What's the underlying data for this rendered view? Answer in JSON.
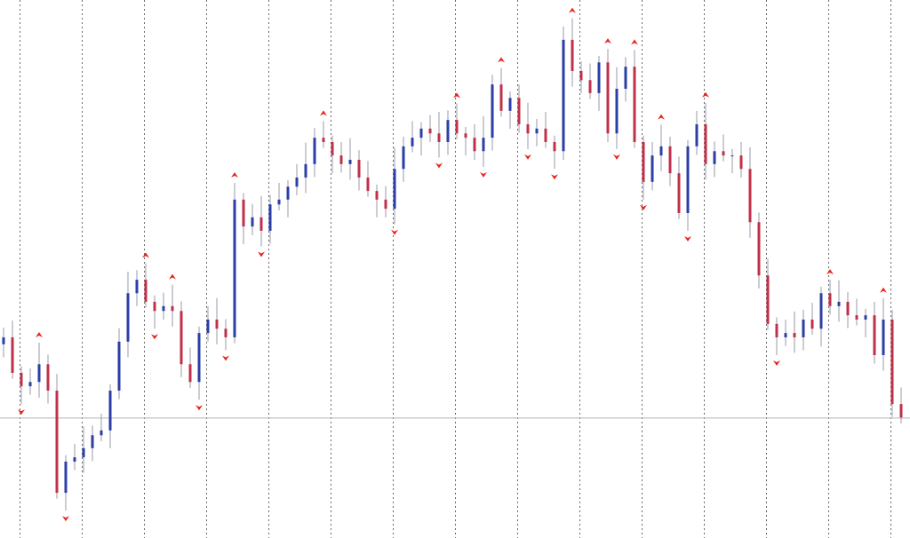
{
  "chart_data": {
    "type": "candlestick",
    "colors": {
      "up": "#2b3fa6",
      "down": "#c0304a",
      "wick": "#9a9aa8",
      "fractal": "#e8231e",
      "price_line": "#b4b4b4",
      "separator": "#505050"
    },
    "ylim": [
      0,
      100
    ],
    "price_line": 22.3,
    "open": [
      36.0,
      37.3,
      30.7,
      28.2,
      29.0,
      32.3,
      27.4,
      8.4,
      14.2,
      15.0,
      16.7,
      19.1,
      20.0,
      27.4,
      36.5,
      45.5,
      48.0,
      43.9,
      42.2,
      43.1,
      42.2,
      32.3,
      29.0,
      38.1,
      40.6,
      38.9,
      37.3,
      62.9,
      57.9,
      59.6,
      57.1,
      62.0,
      62.9,
      65.3,
      67.0,
      69.5,
      74.4,
      73.6,
      71.1,
      69.5,
      70.3,
      67.0,
      64.5,
      62.9,
      61.2,
      68.6,
      72.8,
      74.4,
      76.1,
      75.2,
      73.6,
      77.7,
      75.2,
      74.4,
      71.9,
      74.4,
      84.3,
      79.4,
      81.8,
      76.9,
      75.2,
      76.1,
      73.6,
      71.9,
      92.6,
      86.8,
      85.1,
      82.7,
      88.4,
      75.2,
      83.5,
      87.6,
      73.6,
      66.2,
      71.1,
      72.8,
      67.8,
      60.4,
      72.8,
      76.9,
      69.5,
      71.9,
      71.1,
      71.1,
      68.6,
      58.7,
      48.8,
      39.8,
      37.3,
      38.1,
      37.3,
      40.6,
      38.9,
      45.5,
      43.1,
      43.9,
      41.4,
      40.6,
      41.4,
      34.0,
      40.6,
      24.9
    ],
    "high": [
      39.1,
      40.4,
      31.9,
      31.5,
      36.3,
      34.1,
      30.5,
      15.4,
      17.5,
      20.7,
      20.9,
      23.1,
      28.6,
      39.0,
      49.5,
      49.8,
      51.1,
      45.1,
      45.6,
      47.1,
      44.0,
      35.4,
      39.3,
      43.1,
      44.6,
      40.7,
      66.0,
      64.1,
      62.1,
      63.6,
      63.8,
      66.0,
      66.5,
      69.5,
      73.5,
      76.2,
      77.5,
      74.8,
      73.6,
      74.3,
      72.1,
      70.1,
      65.7,
      65.4,
      72.6,
      74.6,
      77.5,
      77.3,
      78.6,
      79.2,
      79.5,
      80.8,
      76.4,
      76.9,
      78.4,
      86.1,
      87.4,
      83.0,
      84.3,
      80.9,
      77.9,
      79.2,
      74.8,
      95.1,
      96.6,
      88.6,
      88.2,
      89.6,
      90.9,
      87.5,
      89.4,
      90.7,
      74.8,
      73.6,
      76.8,
      74.6,
      70.9,
      74.0,
      79.4,
      80.9,
      73.7,
      75.0,
      72.3,
      73.6,
      72.6,
      60.5,
      51.9,
      41.0,
      40.6,
      42.1,
      42.4,
      43.7,
      46.7,
      48.0,
      47.9,
      45.7,
      44.5,
      42.6,
      43.9,
      44.6,
      42.4,
      28.0
    ],
    "low": [
      33.6,
      29.6,
      24.9,
      26.6,
      26.1,
      25.0,
      7.3,
      5.1,
      12.6,
      12.1,
      14.3,
      18.0,
      16.7,
      25.8,
      33.6,
      43.1,
      42.8,
      38.9,
      40.6,
      39.3,
      29.9,
      27.9,
      25.7,
      36.5,
      36.0,
      34.9,
      36.2,
      54.6,
      56.3,
      54.2,
      54.7,
      60.9,
      59.6,
      63.7,
      64.1,
      67.1,
      72.5,
      67.8,
      67.9,
      66.6,
      64.6,
      63.4,
      59.6,
      59.6,
      58.3,
      66.2,
      71.7,
      71.1,
      73.6,
      70.7,
      71.2,
      74.1,
      71.1,
      70.3,
      69.0,
      72.0,
      78.3,
      76.1,
      75.3,
      72.3,
      72.8,
      72.5,
      68.6,
      70.3,
      83.9,
      82.7,
      81.6,
      79.4,
      73.6,
      72.3,
      81.1,
      72.5,
      62.9,
      64.6,
      68.2,
      65.4,
      59.3,
      57.1,
      71.2,
      66.6,
      67.1,
      70.0,
      67.8,
      67.0,
      55.8,
      46.4,
      38.7,
      34.0,
      35.7,
      34.4,
      34.9,
      37.8,
      35.6,
      41.5,
      40.2,
      39.0,
      39.5,
      37.3,
      32.4,
      31.1,
      22.5,
      21.3
    ],
    "close": [
      37.3,
      30.7,
      28.2,
      29.0,
      32.3,
      27.4,
      8.4,
      14.2,
      15.0,
      16.7,
      19.1,
      20.0,
      27.4,
      36.5,
      45.5,
      48.0,
      43.9,
      42.2,
      43.1,
      42.2,
      32.3,
      29.0,
      38.1,
      40.6,
      38.9,
      37.3,
      62.9,
      57.9,
      59.6,
      57.1,
      62.0,
      62.9,
      65.3,
      67.0,
      69.5,
      74.4,
      73.6,
      71.1,
      69.5,
      70.3,
      67.0,
      64.5,
      62.9,
      61.2,
      68.6,
      72.8,
      74.4,
      76.1,
      75.2,
      73.6,
      77.7,
      75.2,
      74.4,
      71.9,
      74.4,
      84.3,
      79.4,
      81.8,
      76.9,
      75.2,
      76.1,
      73.6,
      71.9,
      92.6,
      86.8,
      85.1,
      82.7,
      88.4,
      75.2,
      83.5,
      87.6,
      73.6,
      66.2,
      71.1,
      72.8,
      67.8,
      60.4,
      72.8,
      76.9,
      69.5,
      71.9,
      71.1,
      71.1,
      68.6,
      58.7,
      48.8,
      39.8,
      37.3,
      38.1,
      37.3,
      40.6,
      38.9,
      45.5,
      43.1,
      43.9,
      41.4,
      40.6,
      41.4,
      34.0,
      40.6,
      24.9,
      22.4
    ]
  }
}
